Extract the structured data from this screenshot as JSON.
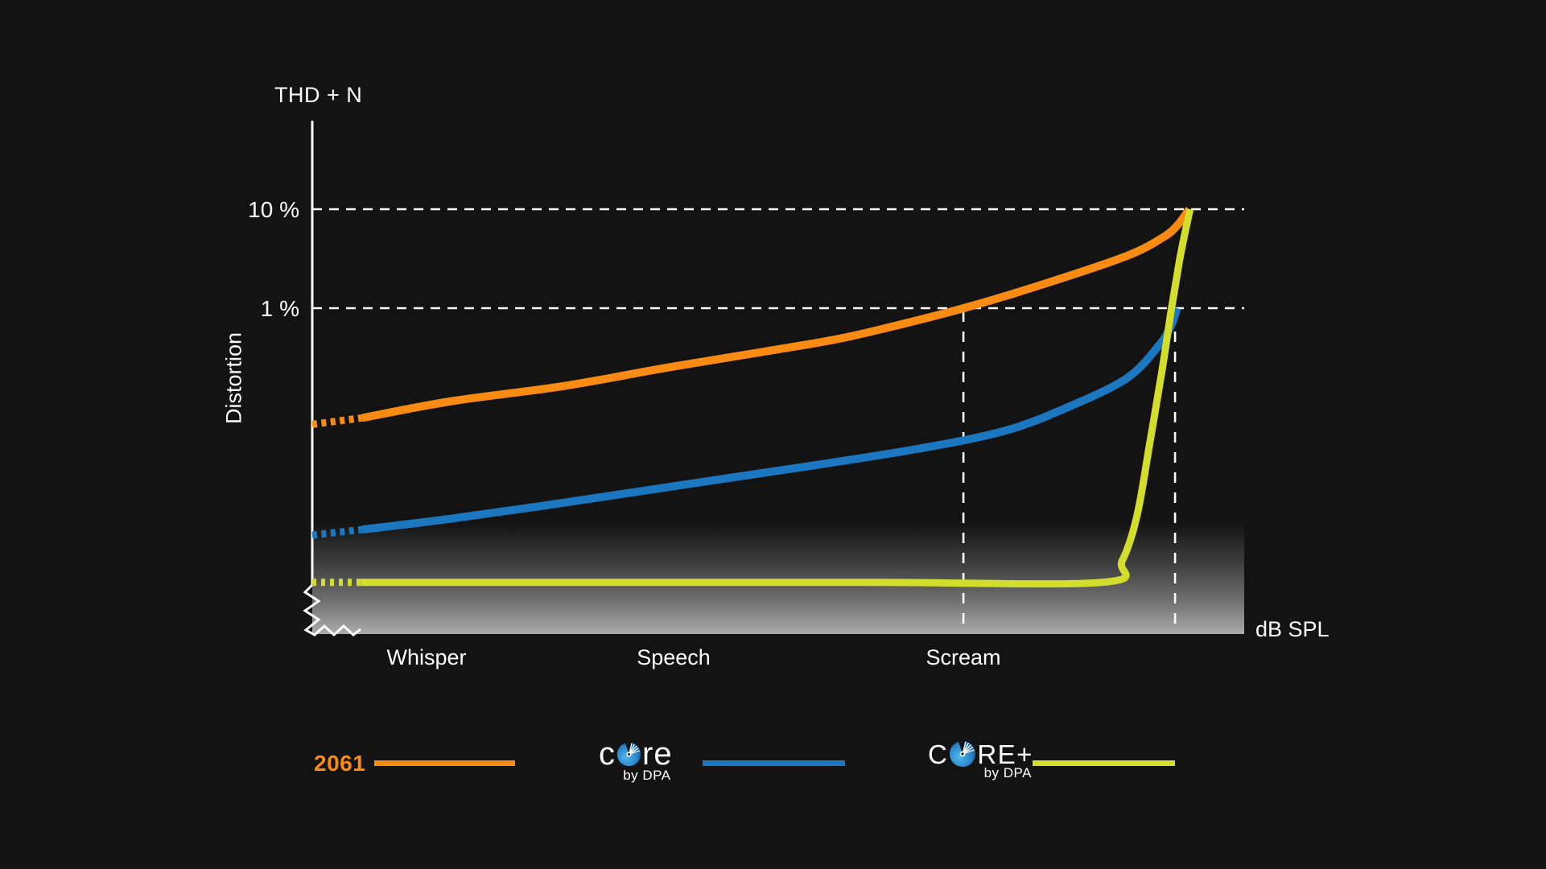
{
  "colors": {
    "background": "#131313",
    "orange": "#F98B12",
    "blue": "#1B77BF",
    "green": "#D3DD2B",
    "text": "#FFFFFF",
    "band_gray": "#ACACAC"
  },
  "chart": {
    "title": "THD + N",
    "ylabel": "Distortion",
    "xlabel": "dB SPL",
    "ytick_10": "10 %",
    "ytick_1": "1 %",
    "cat_whisper": "Whisper",
    "cat_speech": "Speech",
    "cat_scream": "Scream"
  },
  "legend": {
    "item_2061": {
      "label": "2061"
    },
    "item_core": {
      "prefix": "c",
      "suffix": "re",
      "sub": "by DPA"
    },
    "item_core_plus": {
      "prefix": "C",
      "suffix": "RE+",
      "sub": "by DPA"
    }
  },
  "chart_data": {
    "type": "line",
    "title": "THD + N",
    "ylabel": "Distortion",
    "xlabel": "dB SPL",
    "y_axis": {
      "scale": "log",
      "unit": "% THD+N",
      "reference_lines": [
        {
          "label": "10 %",
          "pct": 10
        },
        {
          "label": "1 %",
          "pct": 1
        }
      ]
    },
    "x_axis": {
      "scale": "relative dB SPL (no numeric ticks)",
      "categories": [
        {
          "label": "Whisper",
          "x": 0.123
        },
        {
          "label": "Speech",
          "x": 0.388
        },
        {
          "label": "Scream",
          "x": 0.699
        }
      ],
      "axis_break_at_origin": true
    },
    "markers": [
      {
        "x": 0.6987,
        "note": "SPL where 2061 reaches 1% distortion"
      },
      {
        "x": 0.9258,
        "note": "SPL where CORE reaches 1% distortion"
      }
    ],
    "series": [
      {
        "name": "2061",
        "color_key": "orange",
        "dotted_lead": true,
        "points": [
          [
            0,
            0.067
          ],
          [
            0.054,
            0.078
          ],
          [
            0.15,
            0.115
          ],
          [
            0.269,
            0.163
          ],
          [
            0.38,
            0.25
          ],
          [
            0.485,
            0.364
          ],
          [
            0.56,
            0.48
          ],
          [
            0.615,
            0.627
          ],
          [
            0.699,
            1.0
          ],
          [
            0.788,
            1.79
          ],
          [
            0.874,
            3.37
          ],
          [
            0.913,
            5.2
          ],
          [
            0.929,
            7.0
          ],
          [
            0.941,
            10
          ]
        ]
      },
      {
        "name": "CORE by DPA",
        "color_key": "blue",
        "dotted_lead": true,
        "points": [
          [
            0,
            0.0051
          ],
          [
            0.054,
            0.0058
          ],
          [
            0.15,
            0.0075
          ],
          [
            0.269,
            0.0108
          ],
          [
            0.39,
            0.016
          ],
          [
            0.511,
            0.0236
          ],
          [
            0.649,
            0.0378
          ],
          [
            0.744,
            0.058
          ],
          [
            0.813,
            0.102
          ],
          [
            0.874,
            0.196
          ],
          [
            0.908,
            0.415
          ],
          [
            0.921,
            0.65
          ],
          [
            0.928,
            1.0
          ]
        ]
      },
      {
        "name": "CORE+ by DPA",
        "color_key": "green",
        "dotted_lead": true,
        "points": [
          [
            0,
            0.0017
          ],
          [
            0.052,
            0.0017
          ],
          [
            0.3,
            0.0017
          ],
          [
            0.6,
            0.0017
          ],
          [
            0.848,
            0.0017
          ],
          [
            0.869,
            0.0028
          ],
          [
            0.885,
            0.008
          ],
          [
            0.899,
            0.045
          ],
          [
            0.912,
            0.24
          ],
          [
            0.922,
            1.0
          ],
          [
            0.9305,
            3.0
          ],
          [
            0.936,
            5.5
          ],
          [
            0.942,
            10
          ]
        ]
      }
    ],
    "noise_floor_band": {
      "description": "gray gradient band fading up from plot bottom",
      "x0": 0,
      "x1": 1
    }
  }
}
